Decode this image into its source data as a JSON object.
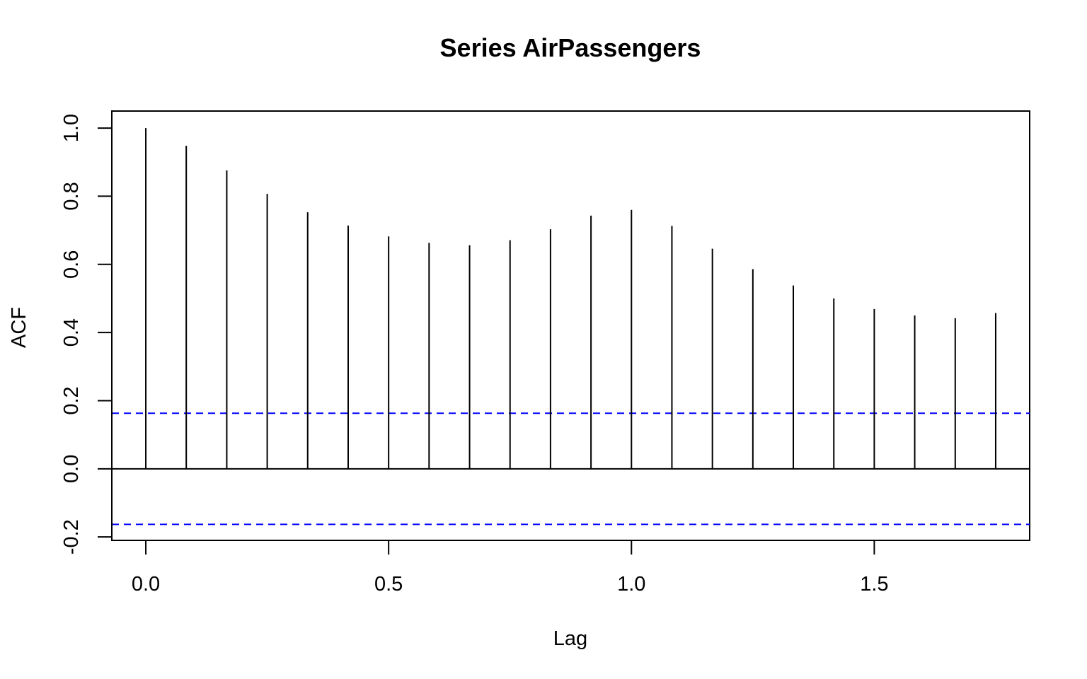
{
  "chart_data": {
    "type": "acf",
    "title": "Series  AirPassengers",
    "xlabel": "Lag",
    "ylabel": "ACF",
    "xlim": [
      -0.07,
      1.82
    ],
    "ylim": [
      -0.21,
      1.05
    ],
    "x_ticks": [
      0.0,
      0.5,
      1.0,
      1.5
    ],
    "x_tick_labels": [
      "0.0",
      "0.5",
      "1.0",
      "1.5"
    ],
    "y_ticks": [
      -0.2,
      0.0,
      0.2,
      0.4,
      0.6,
      0.8,
      1.0
    ],
    "y_tick_labels": [
      "-0.2",
      "0.0",
      "0.2",
      "0.4",
      "0.6",
      "0.8",
      "1.0"
    ],
    "lags": [
      0.0,
      0.0833,
      0.1667,
      0.25,
      0.3333,
      0.4167,
      0.5,
      0.5833,
      0.6667,
      0.75,
      0.8333,
      0.9167,
      1.0,
      1.0833,
      1.1667,
      1.25,
      1.3333,
      1.4167,
      1.5,
      1.5833,
      1.6667,
      1.75
    ],
    "acf": [
      1.0,
      0.948,
      0.876,
      0.807,
      0.753,
      0.714,
      0.682,
      0.663,
      0.656,
      0.671,
      0.703,
      0.743,
      0.76,
      0.713,
      0.646,
      0.586,
      0.538,
      0.5,
      0.469,
      0.45,
      0.442,
      0.457
    ],
    "confidence_bound": 0.163,
    "colors": {
      "bars": "#000000",
      "confidence": "#0000ff",
      "zero_line": "#000000",
      "frame": "#000000"
    },
    "grid": false
  }
}
